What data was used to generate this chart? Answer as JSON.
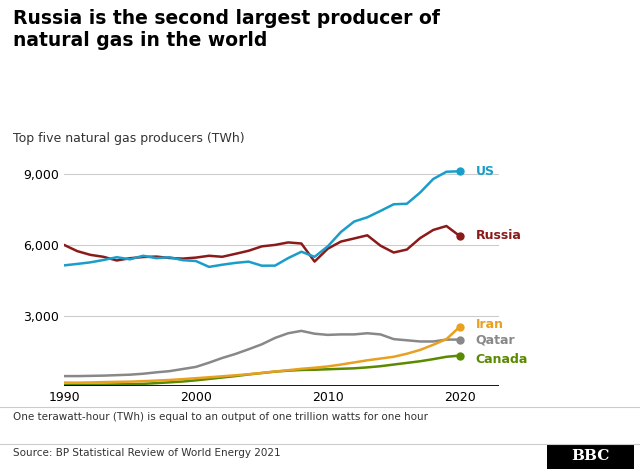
{
  "title": "Russia is the second largest producer of\nnatural gas in the world",
  "subtitle": "Top five natural gas producers (TWh)",
  "footnote": "One terawatt-hour (TWh) is equal to an output of one trillion watts for one hour",
  "source": "Source: BP Statistical Review of World Energy 2021",
  "years": [
    1990,
    1991,
    1992,
    1993,
    1994,
    1995,
    1996,
    1997,
    1998,
    1999,
    2000,
    2001,
    2002,
    2003,
    2004,
    2005,
    2006,
    2007,
    2008,
    2009,
    2010,
    2011,
    2012,
    2013,
    2014,
    2015,
    2016,
    2017,
    2018,
    2019,
    2020
  ],
  "US": [
    5131,
    5193,
    5260,
    5361,
    5478,
    5389,
    5540,
    5437,
    5476,
    5352,
    5316,
    5067,
    5159,
    5237,
    5290,
    5118,
    5120,
    5441,
    5711,
    5495,
    5939,
    6550,
    6992,
    7173,
    7444,
    7726,
    7748,
    8222,
    8800,
    9107,
    9128
  ],
  "Russia": [
    6002,
    5738,
    5578,
    5494,
    5340,
    5435,
    5487,
    5505,
    5445,
    5419,
    5462,
    5539,
    5496,
    5622,
    5752,
    5939,
    6000,
    6106,
    6060,
    5292,
    5839,
    6143,
    6274,
    6408,
    5967,
    5677,
    5804,
    6288,
    6636,
    6802,
    6381
  ],
  "Iran": [
    155,
    150,
    160,
    175,
    185,
    195,
    215,
    240,
    265,
    300,
    340,
    380,
    421,
    465,
    510,
    565,
    625,
    680,
    740,
    785,
    840,
    920,
    1010,
    1100,
    1175,
    1250,
    1380,
    1540,
    1760,
    2000,
    2520
  ],
  "Qatar": [
    430,
    430,
    440,
    450,
    470,
    490,
    530,
    590,
    640,
    730,
    820,
    1000,
    1200,
    1370,
    1570,
    1780,
    2050,
    2250,
    2350,
    2230,
    2180,
    2200,
    2200,
    2250,
    2200,
    2000,
    1950,
    1900,
    1900,
    1980,
    1980
  ],
  "Canada": [
    50,
    55,
    60,
    65,
    75,
    85,
    100,
    130,
    165,
    200,
    250,
    310,
    370,
    430,
    500,
    560,
    620,
    660,
    690,
    700,
    720,
    740,
    760,
    800,
    850,
    920,
    990,
    1060,
    1150,
    1250,
    1300
  ],
  "colors": {
    "US": "#1a9ec9",
    "Russia": "#8b1a1a",
    "Iran": "#e8a020",
    "Qatar": "#888888",
    "Canada": "#5a8a00"
  },
  "ylim": [
    0,
    10000
  ],
  "yticks": [
    0,
    3000,
    6000,
    9000
  ],
  "xlim": [
    1990,
    2020
  ],
  "bg_color": "#ffffff",
  "grid_color": "#cccccc",
  "line_width": 1.8
}
